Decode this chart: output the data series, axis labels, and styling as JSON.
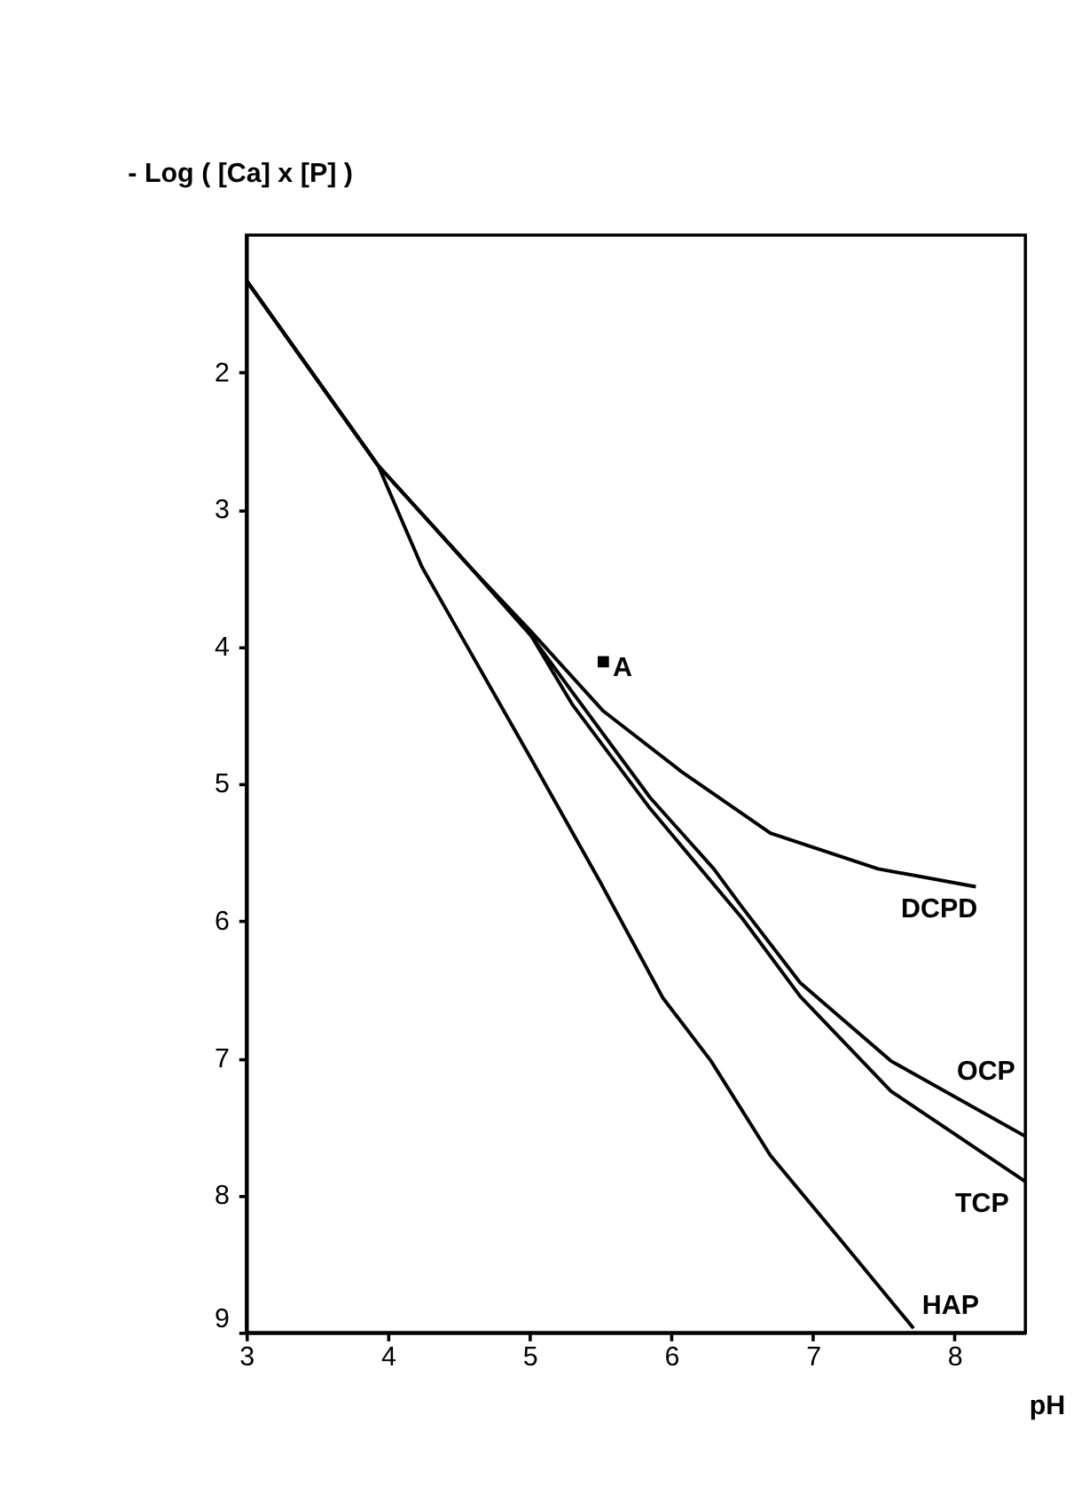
{
  "chart_data": {
    "type": "line",
    "xlabel": "pH",
    "ylabel": "- Log ( [Ca] x [P] )",
    "xlim": [
      3,
      8.5
    ],
    "xticks": [
      3,
      4,
      5,
      6,
      7,
      8
    ],
    "ylim": [
      9,
      1
    ],
    "yticks": [
      2,
      3,
      4,
      5,
      6,
      7,
      8,
      9
    ],
    "grid": false,
    "legend": false,
    "marker": "none",
    "line_style": "solid",
    "series": [
      {
        "name": "DCPD",
        "color": "#000000",
        "x": [
          3,
          3.93,
          4.58,
          5.01,
          5.52,
          6.07,
          6.7,
          7.46,
          8.15
        ],
        "values": [
          1.33,
          2.68,
          3.42,
          3.89,
          4.47,
          4.91,
          5.36,
          5.62,
          5.75
        ]
      },
      {
        "name": "OCP",
        "color": "#000000",
        "x": [
          3,
          3.93,
          4.58,
          5.01,
          5.3,
          5.85,
          6.3,
          6.5,
          6.91,
          7.55,
          8.5
        ],
        "values": [
          1.33,
          2.68,
          3.42,
          3.92,
          4.33,
          5.1,
          5.62,
          5.9,
          6.45,
          7.02,
          7.57
        ]
      },
      {
        "name": "TCP",
        "color": "#000000",
        "x": [
          3,
          3.93,
          4.58,
          5.01,
          5.3,
          5.85,
          6.5,
          6.91,
          7.55,
          8.5
        ],
        "values": [
          1.33,
          2.68,
          3.42,
          3.92,
          4.42,
          5.18,
          5.98,
          6.55,
          7.24,
          7.9
        ]
      },
      {
        "name": "HAP",
        "color": "#000000",
        "x": [
          3,
          3.93,
          4.24,
          5,
          5.5,
          5.94,
          6.28,
          6.7,
          7.2,
          7.71
        ],
        "values": [
          1.33,
          2.68,
          3.42,
          4.8,
          5.72,
          6.56,
          7.02,
          7.71,
          8.33,
          8.97
        ]
      },
      {
        "name": "A",
        "type": "scatter",
        "marker": "square",
        "color": "#000000",
        "x": [
          5.52
        ],
        "values": [
          4.11
        ]
      }
    ]
  }
}
